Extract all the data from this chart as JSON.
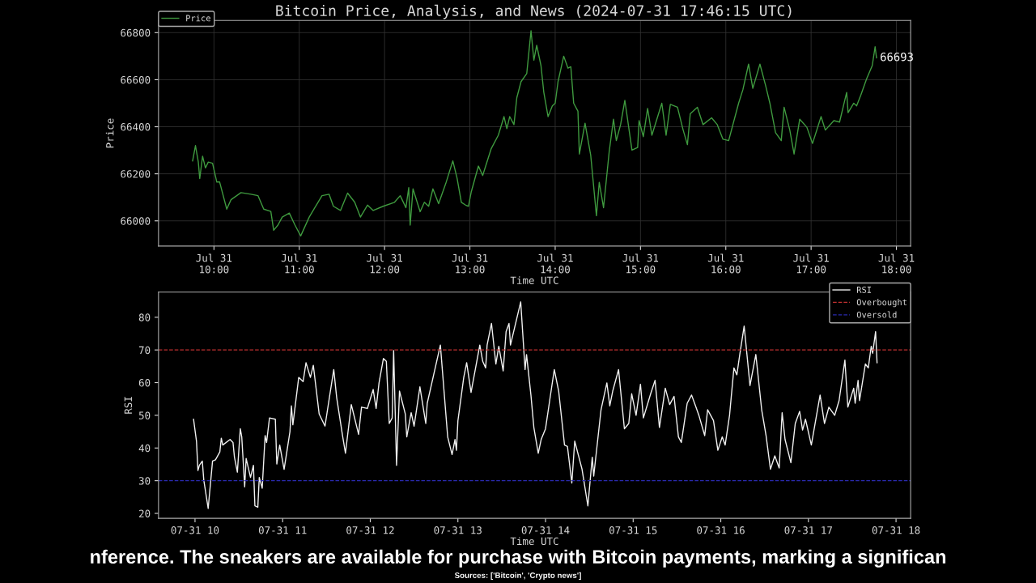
{
  "chart_data": [
    {
      "type": "line",
      "title": "Bitcoin Price, Analysis, and News (2024-07-31 17:46:15 UTC)",
      "xlabel": "Time UTC",
      "ylabel": "Price",
      "xlim": [
        "2024-07-31T09:21",
        "2024-07-31T18:10"
      ],
      "ylim": [
        65893,
        66852
      ],
      "xticks": [
        {
          "value": "2024-07-31T10:00",
          "label": "Jul 31\n10:00"
        },
        {
          "value": "2024-07-31T11:00",
          "label": "Jul 31\n11:00"
        },
        {
          "value": "2024-07-31T12:00",
          "label": "Jul 31\n12:00"
        },
        {
          "value": "2024-07-31T13:00",
          "label": "Jul 31\n13:00"
        },
        {
          "value": "2024-07-31T14:00",
          "label": "Jul 31\n14:00"
        },
        {
          "value": "2024-07-31T15:00",
          "label": "Jul 31\n15:00"
        },
        {
          "value": "2024-07-31T16:00",
          "label": "Jul 31\n16:00"
        },
        {
          "value": "2024-07-31T17:00",
          "label": "Jul 31\n17:00"
        },
        {
          "value": "2024-07-31T18:00",
          "label": "Jul 31\n18:00"
        }
      ],
      "yticks": [
        66000,
        66200,
        66400,
        66600,
        66800
      ],
      "grid": true,
      "legend": "top left",
      "line_style": "solid",
      "annotations": [
        {
          "text": "66693",
          "x": "2024-07-31T17:46",
          "y": 66693
        }
      ],
      "series": [
        {
          "name": "Price",
          "color": "#3f9a3f",
          "x": [
            "2024-07-31T09:45",
            "2024-07-31T09:47",
            "2024-07-31T09:49",
            "2024-07-31T09:50",
            "2024-07-31T09:52",
            "2024-07-31T09:54",
            "2024-07-31T09:56",
            "2024-07-31T09:59",
            "2024-07-31T10:02",
            "2024-07-31T10:04",
            "2024-07-31T10:09",
            "2024-07-31T10:12",
            "2024-07-31T10:19",
            "2024-07-31T10:26",
            "2024-07-31T10:31",
            "2024-07-31T10:35",
            "2024-07-31T10:40",
            "2024-07-31T10:42",
            "2024-07-31T10:45",
            "2024-07-31T10:48",
            "2024-07-31T10:53",
            "2024-07-31T10:57",
            "2024-07-31T11:01",
            "2024-07-31T11:07",
            "2024-07-31T11:12",
            "2024-07-31T11:16",
            "2024-07-31T11:21",
            "2024-07-31T11:24",
            "2024-07-31T11:29",
            "2024-07-31T11:34",
            "2024-07-31T11:39",
            "2024-07-31T11:43",
            "2024-07-31T11:48",
            "2024-07-31T11:52",
            "2024-07-31T11:59",
            "2024-07-31T12:07",
            "2024-07-31T12:11",
            "2024-07-31T12:15",
            "2024-07-31T12:17",
            "2024-07-31T12:18",
            "2024-07-31T12:20",
            "2024-07-31T12:25",
            "2024-07-31T12:28",
            "2024-07-31T12:31",
            "2024-07-31T12:34",
            "2024-07-31T12:38",
            "2024-07-31T12:43",
            "2024-07-31T12:48",
            "2024-07-31T12:51",
            "2024-07-31T12:54",
            "2024-07-31T12:57",
            "2024-07-31T12:59",
            "2024-07-31T13:01",
            "2024-07-31T13:06",
            "2024-07-31T13:09",
            "2024-07-31T13:15",
            "2024-07-31T13:20",
            "2024-07-31T13:24",
            "2024-07-31T13:26",
            "2024-07-31T13:28",
            "2024-07-31T13:31",
            "2024-07-31T13:33",
            "2024-07-31T13:36",
            "2024-07-31T13:40",
            "2024-07-31T13:43",
            "2024-07-31T13:45",
            "2024-07-31T13:47",
            "2024-07-31T13:50",
            "2024-07-31T13:52",
            "2024-07-31T13:55",
            "2024-07-31T13:58",
            "2024-07-31T14:00",
            "2024-07-31T14:02",
            "2024-07-31T14:06",
            "2024-07-31T14:09",
            "2024-07-31T14:11",
            "2024-07-31T14:13",
            "2024-07-31T14:16",
            "2024-07-31T14:17",
            "2024-07-31T14:21",
            "2024-07-31T14:25",
            "2024-07-31T14:29",
            "2024-07-31T14:31",
            "2024-07-31T14:34",
            "2024-07-31T14:38",
            "2024-07-31T14:41",
            "2024-07-31T14:43",
            "2024-07-31T14:46",
            "2024-07-31T14:49",
            "2024-07-31T14:54",
            "2024-07-31T14:58",
            "2024-07-31T14:59",
            "2024-07-31T15:02",
            "2024-07-31T15:05",
            "2024-07-31T15:08",
            "2024-07-31T15:15",
            "2024-07-31T15:18",
            "2024-07-31T15:21",
            "2024-07-31T15:26",
            "2024-07-31T15:30",
            "2024-07-31T15:33",
            "2024-07-31T15:35",
            "2024-07-31T15:40",
            "2024-07-31T15:44",
            "2024-07-31T15:50",
            "2024-07-31T15:54",
            "2024-07-31T15:58",
            "2024-07-31T16:02",
            "2024-07-31T16:09",
            "2024-07-31T16:12",
            "2024-07-31T16:16",
            "2024-07-31T16:19",
            "2024-07-31T16:24",
            "2024-07-31T16:28",
            "2024-07-31T16:31",
            "2024-07-31T16:35",
            "2024-07-31T16:39",
            "2024-07-31T16:41",
            "2024-07-31T16:45",
            "2024-07-31T16:48",
            "2024-07-31T16:52",
            "2024-07-31T16:57",
            "2024-07-31T17:01",
            "2024-07-31T17:07",
            "2024-07-31T17:10",
            "2024-07-31T17:16",
            "2024-07-31T17:20",
            "2024-07-31T17:25",
            "2024-07-31T17:26",
            "2024-07-31T17:30",
            "2024-07-31T17:32",
            "2024-07-31T17:35",
            "2024-07-31T17:39",
            "2024-07-31T17:43",
            "2024-07-31T17:45",
            "2024-07-31T17:46"
          ],
          "values": [
            66255,
            66320,
            66250,
            66180,
            66275,
            66225,
            66250,
            66245,
            66165,
            66165,
            66050,
            66090,
            66120,
            66113,
            66107,
            66050,
            66040,
            65960,
            65982,
            66016,
            66033,
            65982,
            65936,
            66016,
            66067,
            66107,
            66113,
            66062,
            66044,
            66118,
            66079,
            66016,
            66067,
            66044,
            66062,
            66079,
            66107,
            66056,
            66141,
            65982,
            66136,
            66039,
            66079,
            66062,
            66136,
            66073,
            66158,
            66255,
            66181,
            66079,
            66067,
            66062,
            66124,
            66233,
            66193,
            66307,
            66364,
            66443,
            66392,
            66443,
            66409,
            66523,
            66592,
            66626,
            66808,
            66683,
            66746,
            66660,
            66546,
            66443,
            66489,
            66500,
            66592,
            66700,
            66649,
            66655,
            66500,
            66466,
            66284,
            66415,
            66278,
            66022,
            66164,
            66056,
            66295,
            66432,
            66341,
            66409,
            66512,
            66301,
            66312,
            66426,
            66358,
            66478,
            66364,
            66500,
            66364,
            66495,
            66483,
            66386,
            66324,
            66455,
            66483,
            66409,
            66438,
            66409,
            66347,
            66341,
            66500,
            66557,
            66666,
            66563,
            66666,
            66575,
            66500,
            66375,
            66341,
            66483,
            66386,
            66284,
            66432,
            66398,
            66329,
            66443,
            66386,
            66426,
            66420,
            66546,
            66460,
            66500,
            66489,
            66535,
            66603,
            66660,
            66740,
            66693
          ]
        }
      ]
    },
    {
      "type": "line",
      "xlabel": "Time UTC",
      "ylabel": "RSI",
      "xlim": [
        "2024-07-31T09:35",
        "2024-07-31T18:10"
      ],
      "ylim": [
        18.5,
        87.7
      ],
      "xticks": [
        {
          "value": "2024-07-31T10:00",
          "label": "07-31 10"
        },
        {
          "value": "2024-07-31T11:00",
          "label": "07-31 11"
        },
        {
          "value": "2024-07-31T12:00",
          "label": "07-31 12"
        },
        {
          "value": "2024-07-31T13:00",
          "label": "07-31 13"
        },
        {
          "value": "2024-07-31T14:00",
          "label": "07-31 14"
        },
        {
          "value": "2024-07-31T15:00",
          "label": "07-31 15"
        },
        {
          "value": "2024-07-31T16:00",
          "label": "07-31 16"
        },
        {
          "value": "2024-07-31T17:00",
          "label": "07-31 17"
        },
        {
          "value": "2024-07-31T18:00",
          "label": "07-31 18"
        }
      ],
      "yticks": [
        20,
        30,
        40,
        50,
        60,
        70,
        80
      ],
      "grid": false,
      "legend": "top right",
      "line_style": "solid",
      "ref_lines": [
        {
          "axis": "y",
          "value": 70,
          "label": "Overbought",
          "color": "#c03030",
          "line_style": "dashed"
        },
        {
          "axis": "y",
          "value": 30,
          "label": "Oversold",
          "color": "#2a2ab0",
          "line_style": "dashed"
        }
      ],
      "annotations": [
        "nference. The sneakers are available for purchase with Bitcoin payments, marking a significan",
        "Sources: ['Bitcoin', 'Crypto news']"
      ],
      "series": [
        {
          "name": "RSI",
          "color": "#f0f0f0",
          "x": [
            "2024-07-31T09:59",
            "2024-07-31T10:01",
            "2024-07-31T10:02",
            "2024-07-31T10:03",
            "2024-07-31T10:05",
            "2024-07-31T10:06",
            "2024-07-31T10:09",
            "2024-07-31T10:12",
            "2024-07-31T10:14",
            "2024-07-31T10:17",
            "2024-07-31T10:18",
            "2024-07-31T10:19",
            "2024-07-31T10:24",
            "2024-07-31T10:26",
            "2024-07-31T10:27",
            "2024-07-31T10:29",
            "2024-07-31T10:31",
            "2024-07-31T10:32",
            "2024-07-31T10:34",
            "2024-07-31T10:35",
            "2024-07-31T10:38",
            "2024-07-31T10:40",
            "2024-07-31T10:41",
            "2024-07-31T10:43",
            "2024-07-31T10:44",
            "2024-07-31T10:46",
            "2024-07-31T10:48",
            "2024-07-31T10:49",
            "2024-07-31T10:51",
            "2024-07-31T10:55",
            "2024-07-31T10:56",
            "2024-07-31T10:58",
            "2024-07-31T11:01",
            "2024-07-31T11:05",
            "2024-07-31T11:06",
            "2024-07-31T11:07",
            "2024-07-31T11:11",
            "2024-07-31T11:14",
            "2024-07-31T11:16",
            "2024-07-31T11:19",
            "2024-07-31T11:21",
            "2024-07-31T11:25",
            "2024-07-31T11:29",
            "2024-07-31T11:32",
            "2024-07-31T11:35",
            "2024-07-31T11:37",
            "2024-07-31T11:41",
            "2024-07-31T11:43",
            "2024-07-31T11:47",
            "2024-07-31T11:52",
            "2024-07-31T11:54",
            "2024-07-31T11:58",
            "2024-07-31T12:02",
            "2024-07-31T12:04",
            "2024-07-31T12:06",
            "2024-07-31T12:09",
            "2024-07-31T12:11",
            "2024-07-31T12:13",
            "2024-07-31T12:15",
            "2024-07-31T12:16",
            "2024-07-31T12:18",
            "2024-07-31T12:20",
            "2024-07-31T12:24",
            "2024-07-31T12:25",
            "2024-07-31T12:28",
            "2024-07-31T12:30",
            "2024-07-31T12:34",
            "2024-07-31T12:38",
            "2024-07-31T12:39",
            "2024-07-31T12:43",
            "2024-07-31T12:48",
            "2024-07-31T12:53",
            "2024-07-31T12:56",
            "2024-07-31T12:58",
            "2024-07-31T12:59",
            "2024-07-31T13:00",
            "2024-07-31T13:04",
            "2024-07-31T13:06",
            "2024-07-31T13:09",
            "2024-07-31T13:15",
            "2024-07-31T13:17",
            "2024-07-31T13:19",
            "2024-07-31T13:20",
            "2024-07-31T13:23",
            "2024-07-31T13:26",
            "2024-07-31T13:28",
            "2024-07-31T13:31",
            "2024-07-31T13:33",
            "2024-07-31T13:35",
            "2024-07-31T13:36",
            "2024-07-31T13:43",
            "2024-07-31T13:46",
            "2024-07-31T13:47",
            "2024-07-31T13:50",
            "2024-07-31T13:52",
            "2024-07-31T13:55",
            "2024-07-31T13:57",
            "2024-07-31T14:00",
            "2024-07-31T14:03",
            "2024-07-31T14:06",
            "2024-07-31T14:09",
            "2024-07-31T14:13",
            "2024-07-31T14:15",
            "2024-07-31T14:18",
            "2024-07-31T14:20",
            "2024-07-31T14:25",
            "2024-07-31T14:29",
            "2024-07-31T14:32",
            "2024-07-31T14:33",
            "2024-07-31T14:38",
            "2024-07-31T14:42",
            "2024-07-31T14:44",
            "2024-07-31T14:46",
            "2024-07-31T14:50",
            "2024-07-31T14:54",
            "2024-07-31T14:57",
            "2024-07-31T14:59",
            "2024-07-31T15:02",
            "2024-07-31T15:05",
            "2024-07-31T15:07",
            "2024-07-31T15:12",
            "2024-07-31T15:15",
            "2024-07-31T15:18",
            "2024-07-31T15:22",
            "2024-07-31T15:25",
            "2024-07-31T15:28",
            "2024-07-31T15:31",
            "2024-07-31T15:33",
            "2024-07-31T15:37",
            "2024-07-31T15:40",
            "2024-07-31T15:43",
            "2024-07-31T15:45",
            "2024-07-31T15:49",
            "2024-07-31T15:51",
            "2024-07-31T15:55",
            "2024-07-31T15:58",
            "2024-07-31T16:01",
            "2024-07-31T16:03",
            "2024-07-31T16:06",
            "2024-07-31T16:09",
            "2024-07-31T16:11",
            "2024-07-31T16:13",
            "2024-07-31T16:16",
            "2024-07-31T16:20",
            "2024-07-31T16:24",
            "2024-07-31T16:28",
            "2024-07-31T16:31",
            "2024-07-31T16:34",
            "2024-07-31T16:37",
            "2024-07-31T16:40",
            "2024-07-31T16:42",
            "2024-07-31T16:44",
            "2024-07-31T16:48",
            "2024-07-31T16:51",
            "2024-07-31T16:54",
            "2024-07-31T16:56",
            "2024-07-31T16:58",
            "2024-07-31T17:02",
            "2024-07-31T17:08",
            "2024-07-31T17:11",
            "2024-07-31T17:14",
            "2024-07-31T17:18",
            "2024-07-31T17:21",
            "2024-07-31T17:25",
            "2024-07-31T17:27",
            "2024-07-31T17:31",
            "2024-07-31T17:32",
            "2024-07-31T17:34",
            "2024-07-31T17:35",
            "2024-07-31T17:39",
            "2024-07-31T17:41",
            "2024-07-31T17:43",
            "2024-07-31T17:44",
            "2024-07-31T17:46",
            "2024-07-31T17:47"
          ],
          "values": [
            48.8,
            42.1,
            33.1,
            34.7,
            36,
            30.2,
            21.5,
            36,
            36.4,
            38.8,
            43,
            40.9,
            42.6,
            41.7,
            37.2,
            32.6,
            45.9,
            43.4,
            28.1,
            36.8,
            31,
            34.7,
            22.3,
            21.9,
            31,
            27.7,
            43.8,
            41.7,
            49.2,
            48.8,
            35.1,
            40.9,
            33.5,
            45,
            52.9,
            47.1,
            61.6,
            60.3,
            66.1,
            61.6,
            65.3,
            50.4,
            46.7,
            55.4,
            64,
            55.4,
            43.8,
            38.4,
            53.3,
            44.2,
            52.5,
            52.1,
            57.9,
            52.1,
            59.9,
            67.4,
            66.5,
            47.5,
            49.2,
            69.8,
            34.7,
            57.4,
            50.4,
            43.4,
            50.8,
            46.7,
            58.7,
            47.5,
            53.7,
            61.6,
            71.5,
            43.4,
            38,
            42.6,
            39.3,
            48.3,
            61.6,
            66.1,
            57,
            71.5,
            66.5,
            64.5,
            71.5,
            78.1,
            65.7,
            71.1,
            63.6,
            75.6,
            78.1,
            71.5,
            84.7,
            64,
            68.6,
            56.2,
            46.3,
            38.4,
            42.6,
            45.9,
            55,
            64,
            57.4,
            40.9,
            40.5,
            29.3,
            42.1,
            33.5,
            22.3,
            37.2,
            31.4,
            51.7,
            59.9,
            52.9,
            57.4,
            64,
            45.9,
            47.5,
            56.6,
            50,
            59.5,
            49.2,
            56.6,
            60.7,
            46.3,
            58.3,
            53.3,
            55.8,
            43.4,
            41.7,
            53.7,
            56.2,
            52.5,
            50,
            43.8,
            51.7,
            48.4,
            39.3,
            43.4,
            40.9,
            50,
            64.5,
            62.4,
            68.6,
            77.3,
            59.1,
            68.6,
            51.7,
            43.8,
            33.5,
            37.6,
            33.9,
            50.8,
            42.6,
            35.5,
            47.5,
            51.2,
            45.5,
            48.8,
            40.9,
            56.2,
            47.5,
            52.5,
            50,
            54.5,
            66.9,
            52.5,
            58.3,
            53.7,
            60.7,
            54.5,
            65.7,
            64.5,
            71.1,
            69,
            75.6,
            66.1
          ]
        }
      ]
    }
  ]
}
